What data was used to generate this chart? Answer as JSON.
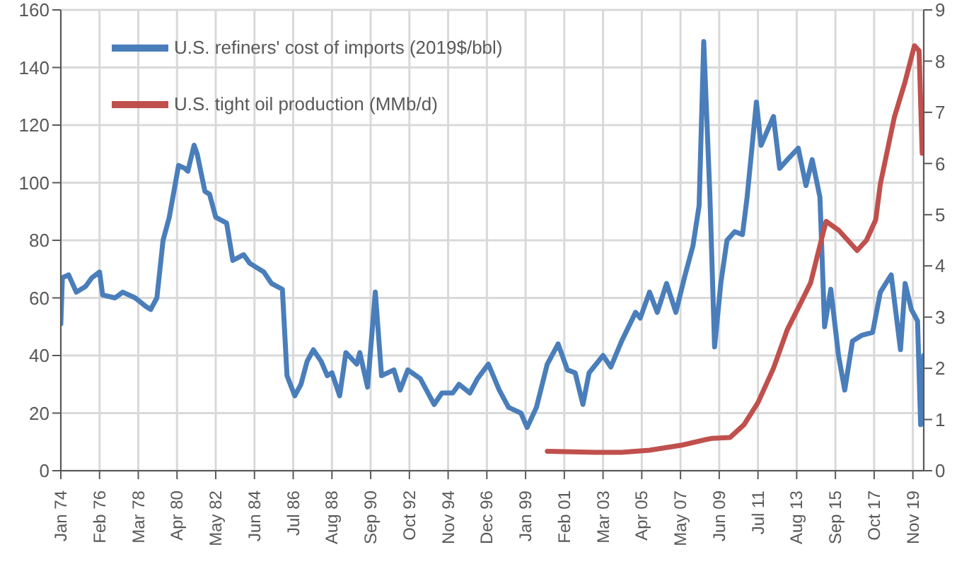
{
  "chart_data": {
    "type": "line",
    "legend": "top left",
    "grid": true,
    "marker": "none",
    "line_style": "solid",
    "xlim": [
      "1974-01",
      "2020-06"
    ],
    "xticks": [
      {
        "value": "1974-01",
        "label": "Jan 74"
      },
      {
        "value": "1976-02",
        "label": "Feb 76"
      },
      {
        "value": "1978-03",
        "label": "Mar 78"
      },
      {
        "value": "1980-04",
        "label": "Apr 80"
      },
      {
        "value": "1982-05",
        "label": "May 82"
      },
      {
        "value": "1984-06",
        "label": "Jun 84"
      },
      {
        "value": "1986-07",
        "label": "Jul 86"
      },
      {
        "value": "1988-08",
        "label": "Aug 88"
      },
      {
        "value": "1990-09",
        "label": "Sep 90"
      },
      {
        "value": "1992-10",
        "label": "Oct 92"
      },
      {
        "value": "1994-11",
        "label": "Nov 94"
      },
      {
        "value": "1996-12",
        "label": "Dec 96"
      },
      {
        "value": "1999-01",
        "label": "Jan 99"
      },
      {
        "value": "2001-02",
        "label": "Feb 01"
      },
      {
        "value": "2003-03",
        "label": "Mar 03"
      },
      {
        "value": "2005-04",
        "label": "Apr 05"
      },
      {
        "value": "2007-05",
        "label": "May 07"
      },
      {
        "value": "2009-06",
        "label": "Jun 09"
      },
      {
        "value": "2011-07",
        "label": "Jul 11"
      },
      {
        "value": "2013-08",
        "label": "Aug 13"
      },
      {
        "value": "2015-09",
        "label": "Sep 15"
      },
      {
        "value": "2017-10",
        "label": "Oct 17"
      },
      {
        "value": "2019-11",
        "label": "Nov 19"
      }
    ],
    "ylim": [
      0,
      160
    ],
    "yticks": [
      0,
      20,
      40,
      60,
      80,
      100,
      120,
      140,
      160
    ],
    "y2lim": [
      0,
      9
    ],
    "y2ticks": [
      0,
      1,
      2,
      3,
      4,
      5,
      6,
      7,
      8,
      9
    ],
    "series": [
      {
        "name": "U.S. refiners' cost of imports (2019$/bbl)",
        "color": "#4a7ebb",
        "x": [
          "1974-01",
          "1974-02",
          "1974-06",
          "1974-11",
          "1975-05",
          "1975-09",
          "1976-02",
          "1976-04",
          "1976-12",
          "1977-05",
          "1978-01",
          "1978-08",
          "1978-11",
          "1979-03",
          "1979-07",
          "1979-11",
          "1980-05",
          "1980-09",
          "1980-11",
          "1981-03",
          "1981-05",
          "1981-10",
          "1982-01",
          "1982-05",
          "1982-12",
          "1983-04",
          "1983-11",
          "1984-03",
          "1984-12",
          "1985-05",
          "1985-12",
          "1986-03",
          "1986-08",
          "1986-12",
          "1987-04",
          "1987-08",
          "1988-01",
          "1988-05",
          "1988-08",
          "1989-01",
          "1989-05",
          "1989-12",
          "1990-02",
          "1990-07",
          "1990-12",
          "1991-04",
          "1991-12",
          "1992-04",
          "1992-09",
          "1993-05",
          "1994-02",
          "1994-07",
          "1995-02",
          "1995-06",
          "1996-01",
          "1996-06",
          "1997-01",
          "1997-08",
          "1998-02",
          "1998-10",
          "1999-02",
          "1999-08",
          "2000-03",
          "2000-10",
          "2001-04",
          "2001-09",
          "2002-02",
          "2002-06",
          "2003-03",
          "2003-08",
          "2004-03",
          "2004-12",
          "2005-03",
          "2005-09",
          "2006-02",
          "2006-08",
          "2007-02",
          "2007-08",
          "2008-01",
          "2008-05",
          "2008-08",
          "2008-12",
          "2009-03",
          "2009-07",
          "2009-11",
          "2010-04",
          "2010-09",
          "2010-12",
          "2011-06",
          "2011-09",
          "2012-05",
          "2012-09",
          "2013-02",
          "2013-09",
          "2014-02",
          "2014-06",
          "2014-11",
          "2015-02",
          "2015-06",
          "2015-11",
          "2016-03",
          "2016-08",
          "2017-02",
          "2017-09",
          "2018-02",
          "2018-09",
          "2019-03",
          "2019-06",
          "2019-10",
          "2020-02",
          "2020-04",
          "2020-06"
        ],
        "values": [
          51,
          67,
          68,
          62,
          64,
          67,
          69,
          61,
          60,
          62,
          60,
          57,
          56,
          60,
          80,
          88,
          106,
          105,
          104,
          113,
          110,
          97,
          96,
          88,
          86,
          73,
          75,
          72,
          69,
          65,
          63,
          33,
          26,
          30,
          38,
          42,
          38,
          33,
          34,
          26,
          41,
          37,
          41,
          29,
          62,
          33,
          35,
          28,
          35,
          32,
          23,
          27,
          27,
          30,
          27,
          32,
          37,
          28,
          22,
          20,
          15,
          22,
          37,
          44,
          35,
          34,
          23,
          34,
          40,
          36,
          45,
          55,
          53,
          62,
          55,
          65,
          55,
          68,
          78,
          92,
          149,
          95,
          43,
          65,
          80,
          83,
          82,
          95,
          128,
          113,
          123,
          105,
          108,
          112,
          99,
          108,
          95,
          50,
          63,
          40,
          28,
          45,
          47,
          48,
          62,
          68,
          42,
          65,
          56,
          52,
          16,
          40
        ]
      },
      {
        "name": "U.S. tight oil production (MMb/d)",
        "color": "#c0504d",
        "axis": "y2",
        "x": [
          "2000-03",
          "2002-10",
          "2004-03",
          "2005-09",
          "2007-06",
          "2008-08",
          "2009-01",
          "2010-01",
          "2010-10",
          "2011-07",
          "2012-05",
          "2013-02",
          "2013-11",
          "2014-05",
          "2014-11",
          "2015-03",
          "2015-11",
          "2016-11",
          "2017-05",
          "2017-11",
          "2018-02",
          "2018-11",
          "2019-06",
          "2019-12",
          "2020-03",
          "2020-05",
          "2020-06"
        ],
        "values": [
          0.38,
          0.36,
          0.36,
          0.4,
          0.5,
          0.6,
          0.63,
          0.65,
          0.9,
          1.33,
          2.0,
          2.76,
          3.3,
          3.67,
          4.4,
          4.87,
          4.7,
          4.3,
          4.5,
          4.9,
          5.6,
          6.9,
          7.6,
          8.3,
          8.2,
          6.2,
          7.0
        ]
      }
    ]
  }
}
